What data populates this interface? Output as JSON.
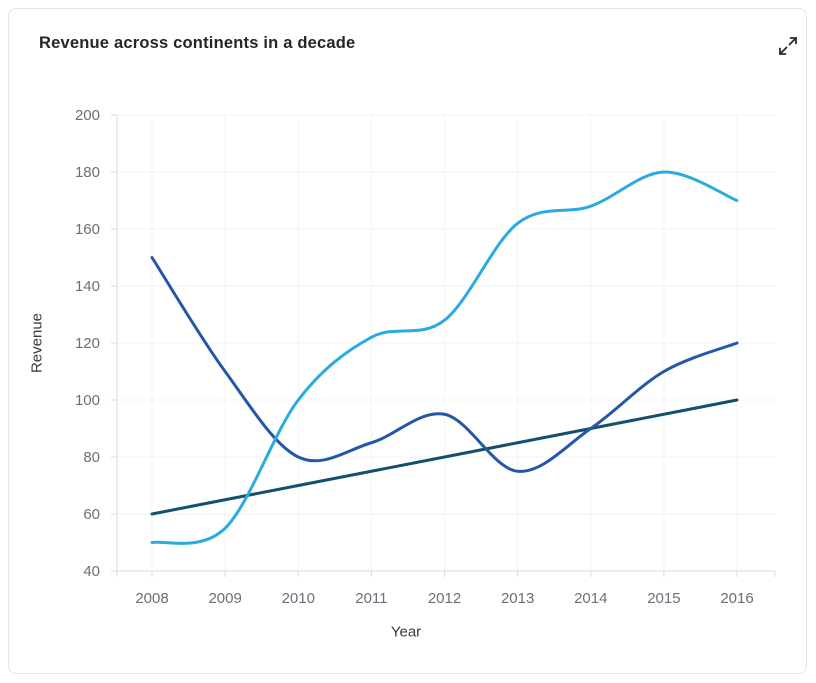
{
  "card": {
    "title": "Revenue across continents in a decade"
  },
  "icons": {
    "expand": "expand-diagonal-arrows"
  },
  "chart_data": {
    "type": "line",
    "title": "Revenue across continents in a decade",
    "xlabel": "Year",
    "ylabel": "Revenue",
    "categories": [
      "2008",
      "2009",
      "2010",
      "2011",
      "2012",
      "2013",
      "2014",
      "2015",
      "2016"
    ],
    "series": [
      {
        "name": "series-light-blue",
        "color": "#29abe2",
        "values": [
          50,
          55,
          100,
          122,
          128,
          162,
          168,
          180,
          170
        ]
      },
      {
        "name": "series-dark-blue",
        "color": "#2457a7",
        "values": [
          150,
          110,
          80,
          85,
          95,
          75,
          90,
          110,
          120
        ]
      },
      {
        "name": "series-teal",
        "color": "#14506e",
        "values": [
          60,
          65,
          70,
          75,
          80,
          85,
          90,
          95,
          100
        ]
      }
    ],
    "ylim": [
      40,
      200
    ],
    "ytick_step": 20,
    "yticks": [
      40,
      60,
      80,
      100,
      120,
      140,
      160,
      180,
      200
    ],
    "grid": true,
    "legend": "none",
    "curve": "smooth",
    "styles": {
      "grid_color": "#f2f3f5",
      "axis_color": "#dde1e6",
      "tick_label_color": "#697077",
      "line_width": 3
    }
  }
}
